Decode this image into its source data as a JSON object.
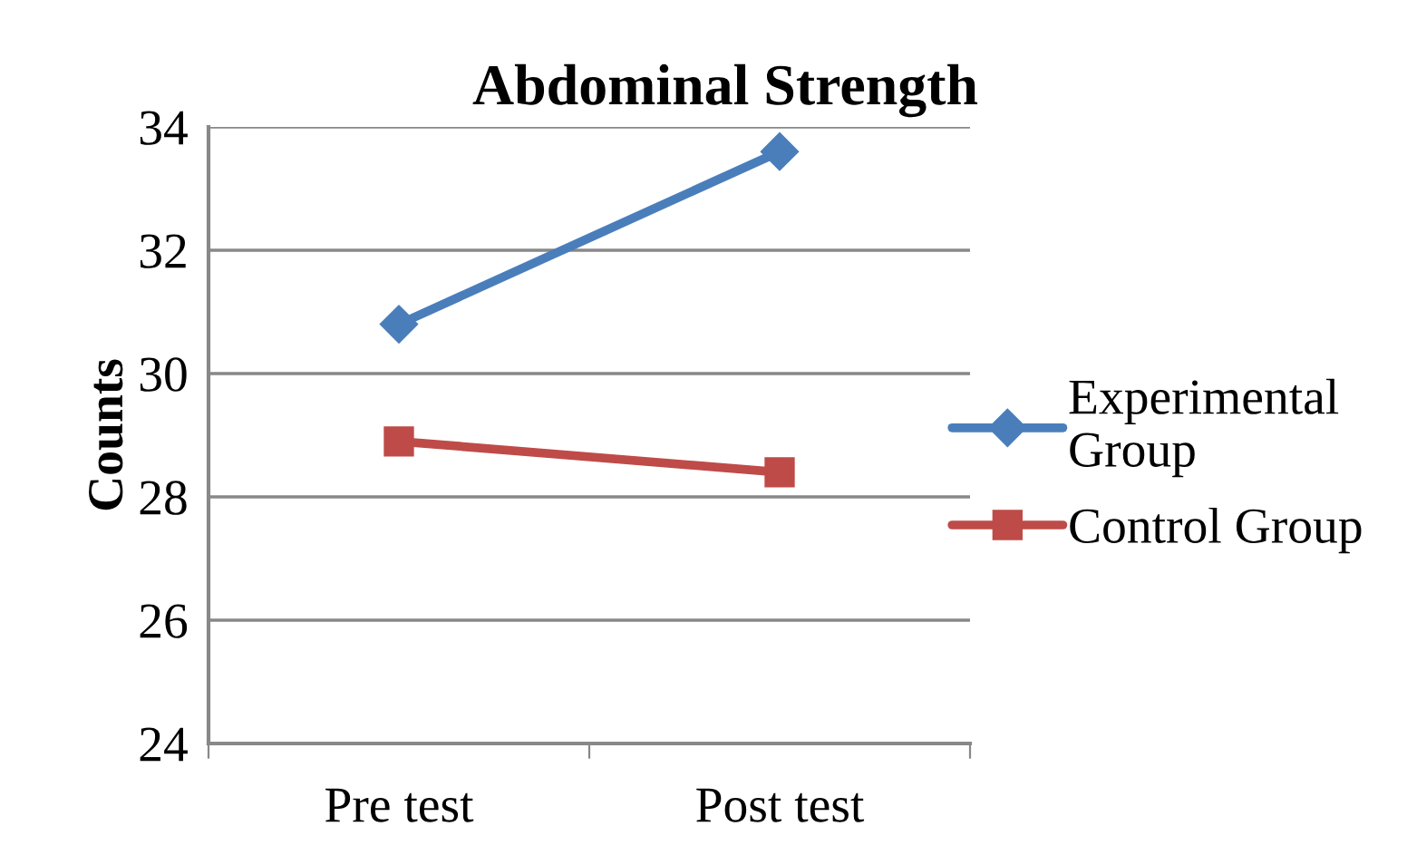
{
  "chart_data": {
    "type": "line",
    "title": "Abdominal Strength",
    "ylabel": "Counts",
    "categories": [
      "Pre test",
      "Post test"
    ],
    "series": [
      {
        "name": "Experimental Group",
        "color": "#4a7ebb",
        "marker": "diamond",
        "values": [
          30.8,
          33.6
        ]
      },
      {
        "name": "Control Group",
        "color": "#be4b48",
        "marker": "square",
        "values": [
          28.9,
          28.4
        ]
      }
    ],
    "ylim": [
      24,
      34
    ],
    "yticks": [
      24,
      26,
      28,
      30,
      32,
      34
    ],
    "grid": "y",
    "legend": "right",
    "line_style": "solid"
  }
}
